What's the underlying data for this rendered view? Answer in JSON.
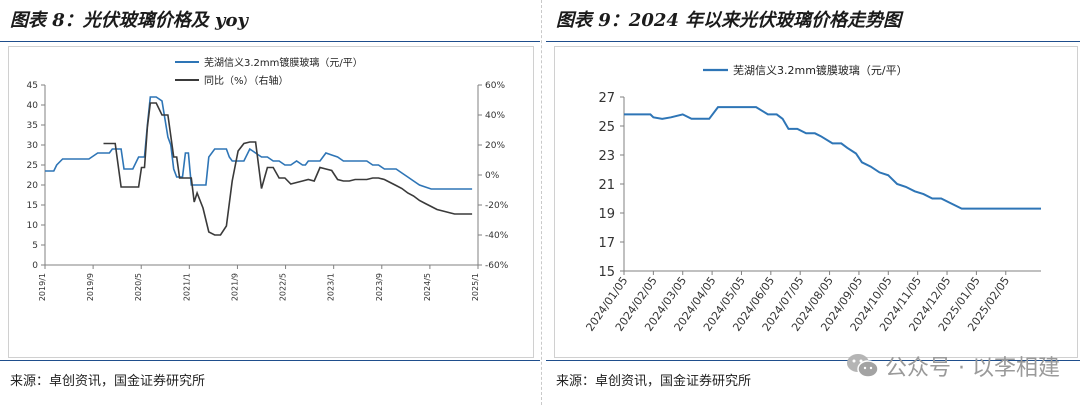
{
  "left": {
    "title": "图表 8：光伏玻璃价格及 yoy",
    "source": "来源：卓创资讯，国金证券研究所"
  },
  "right": {
    "title": "图表 9：2024 年以来光伏玻璃价格走势图",
    "source": "来源：卓创资讯，国金证券研究所"
  },
  "watermark": "公众号 · 以李相建",
  "colors": {
    "price": "#2e75b6",
    "yoy": "#3a3a3a",
    "rule": "#1f4e8c",
    "axis": "#808080"
  },
  "chart_data": [
    {
      "type": "line",
      "title": "",
      "legend_position": "top-center",
      "x_ticks": [
        "2019/1",
        "2019/9",
        "2020/5",
        "2021/1",
        "2021/9",
        "2022/5",
        "2023/1",
        "2023/9",
        "2024/5",
        "2025/1"
      ],
      "x_range": [
        0,
        74
      ],
      "y_left_ticks": [
        "0",
        "5",
        "10",
        "15",
        "20",
        "25",
        "30",
        "35",
        "40",
        "45"
      ],
      "y_left_range": [
        0,
        45
      ],
      "y_right_ticks": [
        "-60%",
        "-40%",
        "-20%",
        "0%",
        "20%",
        "40%",
        "60%"
      ],
      "y_right_range": [
        -60,
        60
      ],
      "series": [
        {
          "name": "芜湖信义3.2mm镀膜玻璃（元/平）",
          "axis": "left",
          "x": [
            0,
            1.5,
            2,
            3,
            4,
            5,
            6,
            7,
            7.5,
            9,
            10,
            11,
            11.5,
            12,
            13,
            13.5,
            14,
            15,
            16,
            17,
            17.5,
            18,
            18.5,
            19,
            20,
            21,
            21.5,
            22,
            22.5,
            23,
            23.5,
            24,
            24.5,
            25,
            26,
            27,
            27.5,
            28,
            29,
            30,
            31,
            31.5,
            32,
            33,
            34,
            35,
            36,
            37,
            38,
            39,
            40,
            41,
            42,
            43,
            44,
            44.5,
            45,
            46,
            47,
            48,
            49,
            50,
            51,
            52,
            53,
            54,
            55,
            56,
            57,
            58,
            59,
            60,
            61,
            62,
            63,
            64,
            65,
            66,
            67,
            68,
            69,
            70,
            71,
            72,
            73
          ],
          "y": [
            23.5,
            23.5,
            25,
            26.5,
            26.5,
            26.5,
            26.5,
            26.5,
            26.5,
            28,
            28,
            28,
            29,
            29,
            29,
            24,
            24,
            24,
            27,
            27,
            35,
            42,
            42,
            42,
            41,
            32,
            30,
            24,
            22,
            22,
            22,
            28,
            28,
            20,
            20,
            20,
            20,
            27,
            29,
            29,
            29,
            27,
            26,
            26,
            26,
            29,
            28,
            27,
            27,
            26,
            26,
            25,
            25,
            26,
            25,
            25,
            26,
            26,
            26,
            28,
            27.5,
            27,
            26,
            26,
            26,
            26,
            26,
            25,
            25,
            24,
            24,
            24,
            23,
            22,
            21,
            20,
            19.5,
            19,
            19,
            19,
            19,
            19,
            19,
            19,
            19
          ]
        },
        {
          "name": "同比（%）（右轴）",
          "axis": "right",
          "x": [
            10,
            11,
            12,
            13,
            13.5,
            14,
            15,
            16,
            16.5,
            17,
            17.5,
            18,
            18.5,
            19,
            20,
            21,
            22,
            22.5,
            23,
            24,
            25,
            25.5,
            26,
            27,
            28,
            29,
            29.5,
            30,
            31,
            32,
            33,
            34,
            35,
            36,
            37,
            38,
            39,
            40,
            41,
            42,
            43,
            44,
            45,
            46,
            47,
            48,
            49,
            50,
            51,
            52,
            53,
            54,
            55,
            56,
            57,
            58,
            59,
            60,
            61,
            62,
            63,
            64,
            65,
            66,
            67,
            68,
            69,
            70,
            71,
            72,
            73
          ],
          "y": [
            21,
            21,
            21,
            -8,
            -8,
            -8,
            -8,
            -8,
            5,
            5,
            32,
            48,
            48,
            48,
            40,
            40,
            12,
            12,
            -2,
            -2,
            -2,
            -18,
            -12,
            -22,
            -38,
            -40,
            -40,
            -40,
            -34,
            -4,
            16,
            21,
            22,
            22,
            -9,
            5,
            5,
            -2,
            -2,
            -6,
            -5,
            -4,
            -3,
            -4,
            5,
            4,
            3,
            -3,
            -4,
            -4,
            -3,
            -3,
            -3,
            -2,
            -2,
            -3,
            -5,
            -7,
            -9,
            -12,
            -14,
            -17,
            -19,
            -21,
            -23,
            -24,
            -25,
            -26,
            -26,
            -26,
            -26
          ]
        }
      ]
    },
    {
      "type": "line",
      "title": "",
      "legend_position": "top-center",
      "x_ticks": [
        "2024/01/05",
        "2024/02/05",
        "2024/03/05",
        "2024/04/05",
        "2024/05/05",
        "2024/06/05",
        "2024/07/05",
        "2024/08/05",
        "2024/09/05",
        "2024/10/05",
        "2024/11/05",
        "2024/12/05",
        "2025/01/05",
        "2025/02/05"
      ],
      "x_range": [
        0,
        14.2
      ],
      "y_ticks": [
        "15",
        "17",
        "19",
        "21",
        "23",
        "25",
        "27"
      ],
      "y_range": [
        15,
        27
      ],
      "series": [
        {
          "name": "芜湖信义3.2mm镀膜玻璃（元/平）",
          "x": [
            0,
            0.9,
            1,
            1.3,
            1.6,
            2,
            2.3,
            2.6,
            2.9,
            3.2,
            3.6,
            3.9,
            4.1,
            4.5,
            4.9,
            5.2,
            5.4,
            5.6,
            5.9,
            6.2,
            6.5,
            6.7,
            7.1,
            7.4,
            7.6,
            7.9,
            8.1,
            8.4,
            8.7,
            9,
            9.3,
            9.6,
            9.9,
            10.2,
            10.5,
            10.8,
            11.1,
            11.5,
            12,
            12.5,
            13,
            13.5,
            14.2
          ],
          "y": [
            25.8,
            25.8,
            25.6,
            25.5,
            25.6,
            25.8,
            25.5,
            25.5,
            25.5,
            26.3,
            26.3,
            26.3,
            26.3,
            26.3,
            25.8,
            25.8,
            25.5,
            24.8,
            24.8,
            24.5,
            24.5,
            24.3,
            23.8,
            23.8,
            23.5,
            23.1,
            22.5,
            22.2,
            21.8,
            21.6,
            21.0,
            20.8,
            20.5,
            20.3,
            20.0,
            20.0,
            19.7,
            19.3,
            19.3,
            19.3,
            19.3,
            19.3,
            19.3
          ]
        }
      ]
    }
  ]
}
